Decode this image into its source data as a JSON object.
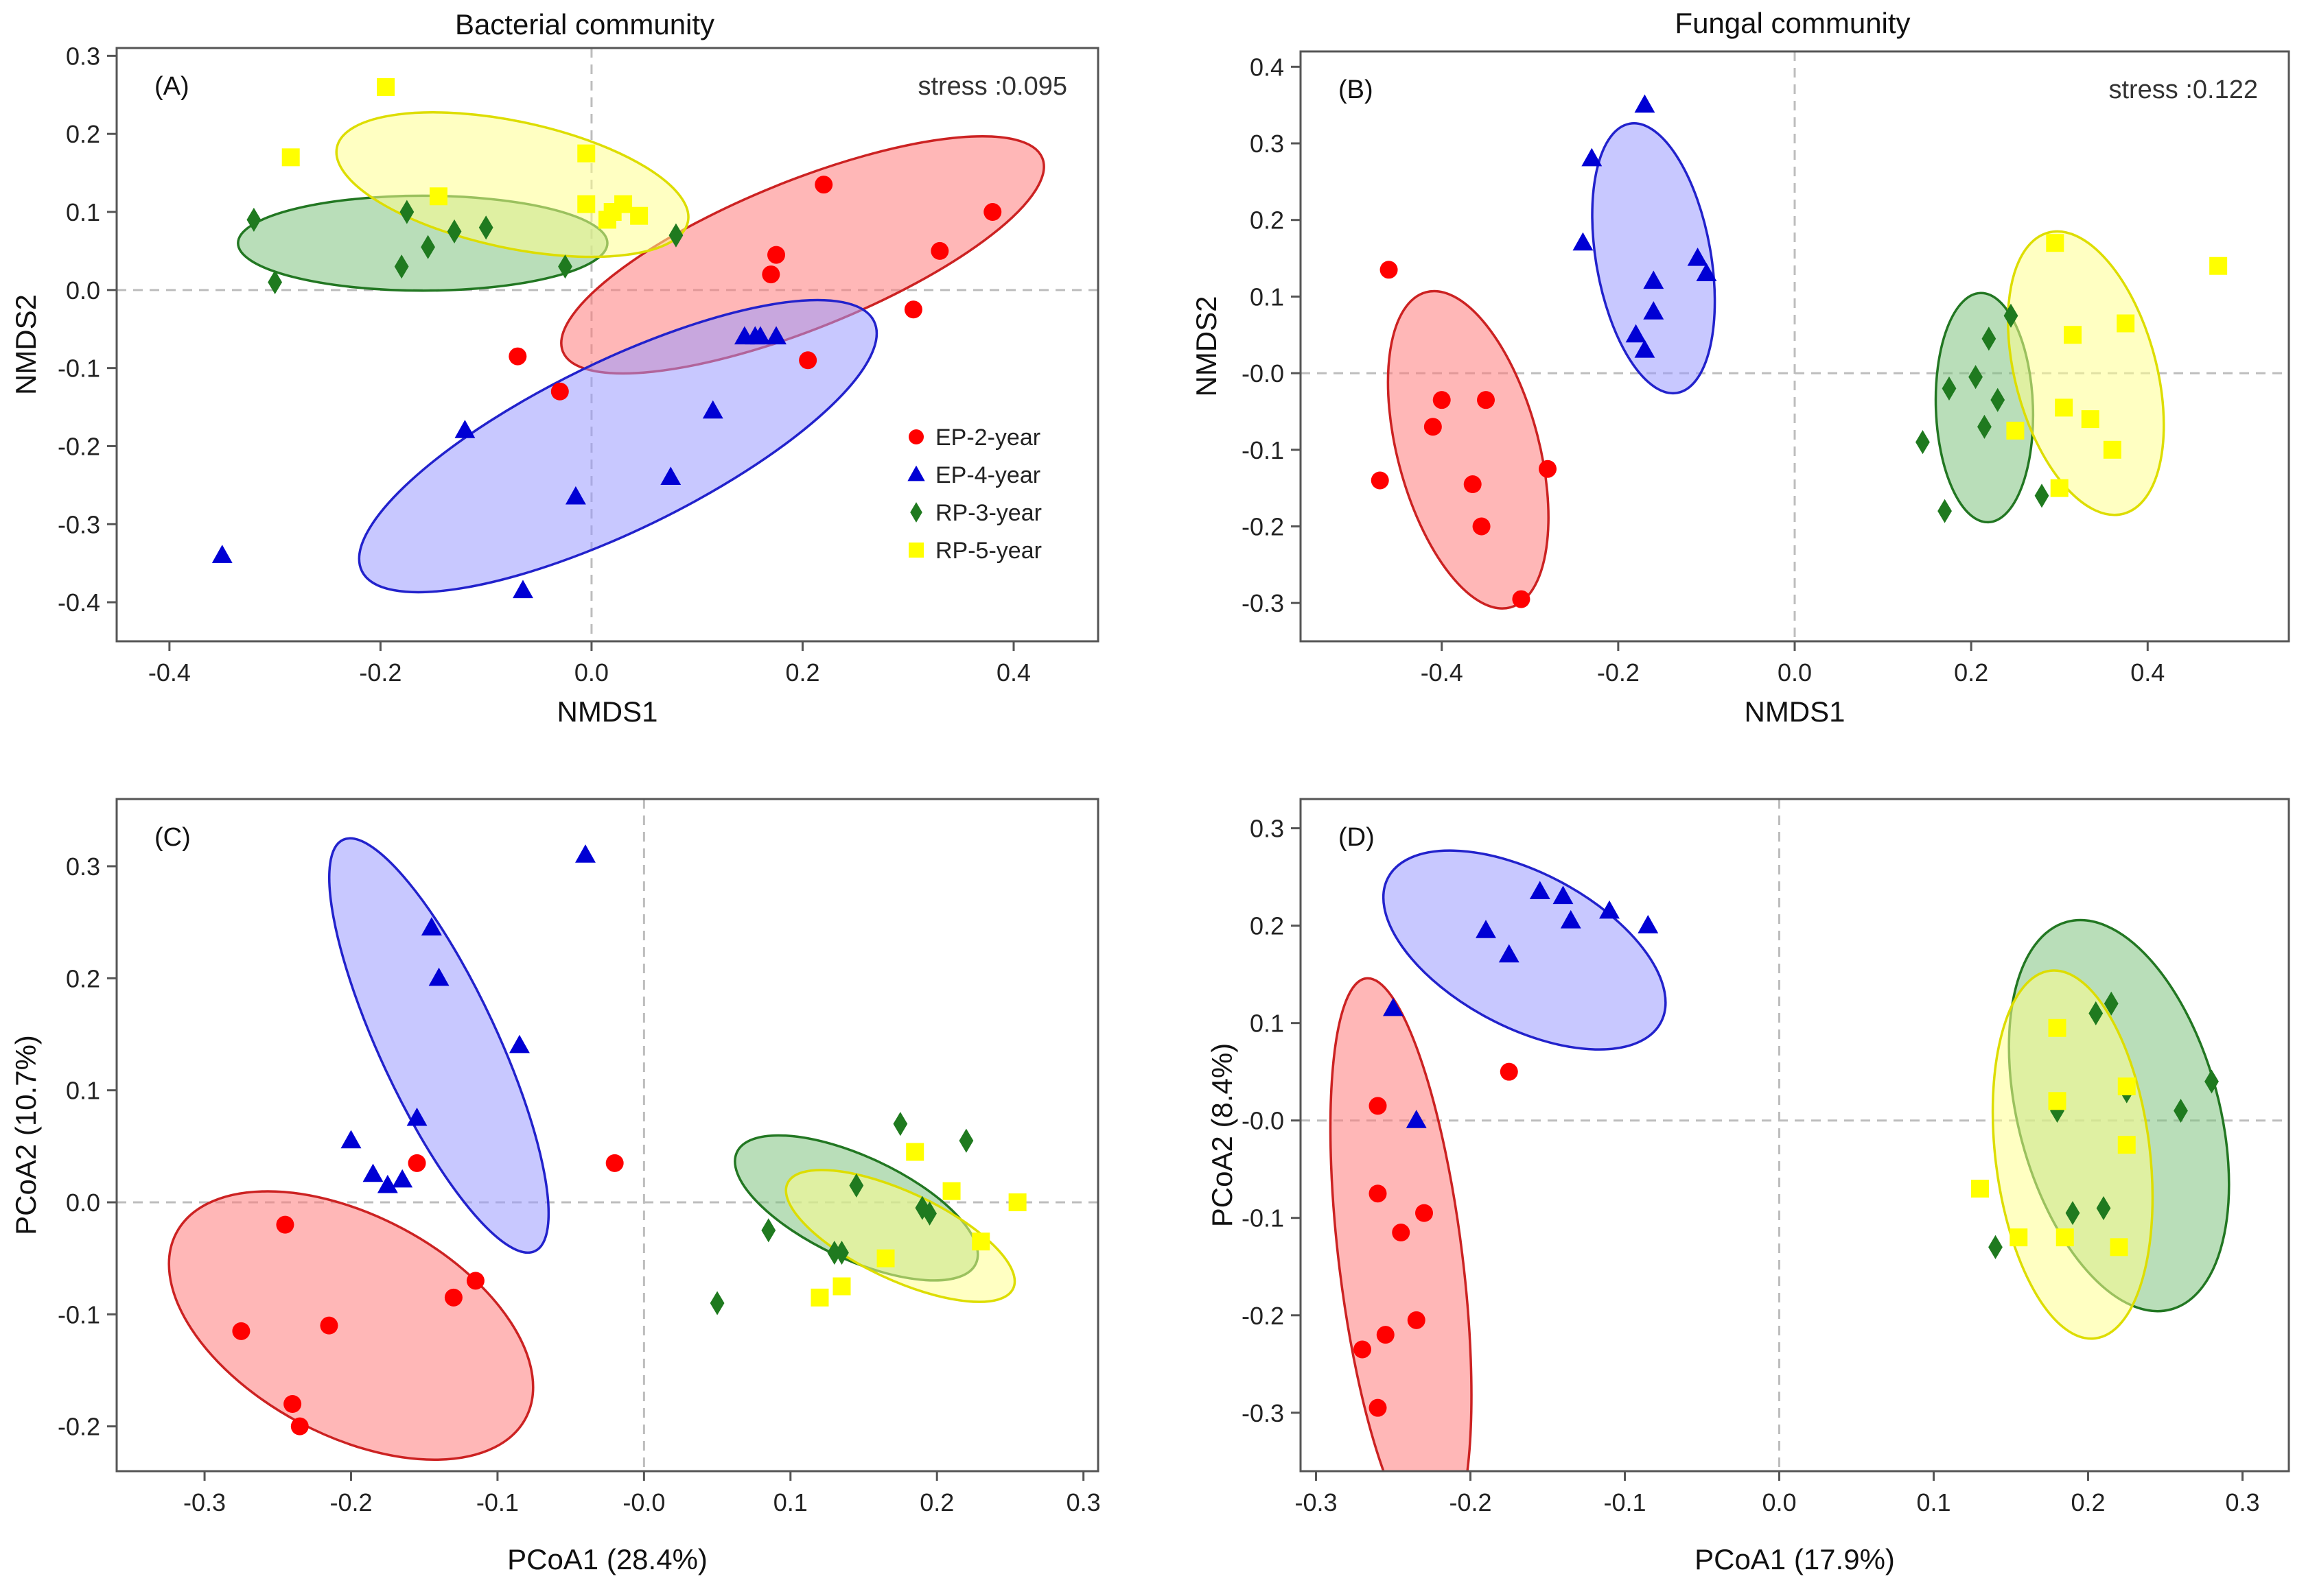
{
  "column_titles": [
    "Bacterial community",
    "Fungal community"
  ],
  "legend_colors": {
    "EP-2-year": "#ff0000",
    "EP-4-year": "#0000d4",
    "RP-3-year": "#1f7a1f",
    "RP-5-year": "#ffff00"
  },
  "ellipse_fill": {
    "EP-2-year": "#ff7b7b",
    "EP-4-year": "#9b9bff",
    "RP-3-year": "#7fc27f",
    "RP-5-year": "#ffff8f"
  },
  "ellipse_stroke": {
    "EP-2-year": "#cc2222",
    "EP-4-year": "#2222cc",
    "RP-3-year": "#227722",
    "RP-5-year": "#dddd00"
  },
  "chart_data": [
    {
      "type": "scatter",
      "panel": "(A)",
      "title": "Bacterial community",
      "xlabel": "NMDS1",
      "ylabel": "NMDS2",
      "annotation": "stress :0.095",
      "xlim": [
        -0.45,
        0.48
      ],
      "ylim": [
        -0.45,
        0.31
      ],
      "xticks": [
        -0.4,
        -0.2,
        0.0,
        0.2,
        0.4
      ],
      "xtick_labels": [
        "-0.4",
        "-0.2",
        "0.0",
        "0.2",
        "0.4"
      ],
      "yticks": [
        0.3,
        0.2,
        0.1,
        0.0,
        -0.1,
        -0.2,
        -0.3,
        -0.4
      ],
      "ytick_labels": [
        "0.3",
        "0.2",
        "0.1",
        "0.0",
        "-0.1",
        "-0.2",
        "-0.3",
        "-0.4"
      ],
      "legend": [
        "EP-2-year",
        "EP-4-year",
        "RP-3-year",
        "RP-5-year"
      ],
      "legend_position": "right-middle",
      "series": [
        {
          "name": "EP-2-year",
          "marker": "circle",
          "points": [
            [
              -0.07,
              -0.085
            ],
            [
              -0.03,
              -0.13
            ],
            [
              0.17,
              0.02
            ],
            [
              0.175,
              0.045
            ],
            [
              0.22,
              0.135
            ],
            [
              0.205,
              -0.09
            ],
            [
              0.305,
              -0.025
            ],
            [
              0.33,
              0.05
            ],
            [
              0.38,
              0.1
            ]
          ]
        },
        {
          "name": "EP-4-year",
          "marker": "triangle",
          "points": [
            [
              -0.35,
              -0.34
            ],
            [
              -0.12,
              -0.18
            ],
            [
              -0.065,
              -0.385
            ],
            [
              -0.015,
              -0.265
            ],
            [
              0.075,
              -0.24
            ],
            [
              0.115,
              -0.155
            ],
            [
              0.145,
              -0.06
            ],
            [
              0.155,
              -0.06
            ],
            [
              0.16,
              -0.06
            ],
            [
              0.175,
              -0.06
            ]
          ]
        },
        {
          "name": "RP-3-year",
          "marker": "diamond",
          "points": [
            [
              -0.32,
              0.09
            ],
            [
              -0.3,
              0.01
            ],
            [
              -0.18,
              0.03
            ],
            [
              -0.175,
              0.1
            ],
            [
              -0.155,
              0.055
            ],
            [
              -0.13,
              0.075
            ],
            [
              -0.1,
              0.08
            ],
            [
              -0.025,
              0.03
            ],
            [
              0.08,
              0.07
            ]
          ]
        },
        {
          "name": "RP-5-year",
          "marker": "square",
          "points": [
            [
              -0.285,
              0.17
            ],
            [
              -0.195,
              0.26
            ],
            [
              -0.145,
              0.12
            ],
            [
              -0.005,
              0.11
            ],
            [
              -0.005,
              0.175
            ],
            [
              0.015,
              0.09
            ],
            [
              0.02,
              0.1
            ],
            [
              0.03,
              0.11
            ],
            [
              0.045,
              0.095
            ]
          ]
        }
      ],
      "ellipses": [
        {
          "group": "EP-2-year",
          "center": [
            0.2,
            0.045
          ],
          "rx": 0.245,
          "ry": 0.07,
          "angle_deg": 22
        },
        {
          "group": "EP-4-year",
          "center": [
            0.025,
            -0.2
          ],
          "rx": 0.27,
          "ry": 0.08,
          "angle_deg": 26
        },
        {
          "group": "RP-3-year",
          "center": [
            -0.16,
            0.06
          ],
          "rx": 0.175,
          "ry": 0.045,
          "angle_deg": 0
        },
        {
          "group": "RP-5-year",
          "center": [
            -0.075,
            0.135
          ],
          "rx": 0.17,
          "ry": 0.06,
          "angle_deg": -12
        }
      ]
    },
    {
      "type": "scatter",
      "panel": "(B)",
      "title": "Fungal community",
      "xlabel": "NMDS1",
      "ylabel": "NMDS2",
      "annotation": "stress :0.122",
      "xlim": [
        -0.56,
        0.56
      ],
      "ylim": [
        -0.35,
        0.42
      ],
      "xticks": [
        -0.4,
        -0.2,
        0.0,
        0.2,
        0.4
      ],
      "xtick_labels": [
        "-0.4",
        "-0.2",
        "0.0",
        "0.2",
        "0.4"
      ],
      "yticks": [
        0.4,
        0.3,
        0.2,
        0.1,
        0.0,
        -0.1,
        -0.2,
        -0.3
      ],
      "ytick_labels": [
        "0.4",
        "0.3",
        "0.2",
        "0.1",
        "-0.0",
        "-0.1",
        "-0.2",
        "-0.3"
      ],
      "series": [
        {
          "name": "EP-2-year",
          "marker": "circle",
          "points": [
            [
              -0.46,
              0.135
            ],
            [
              -0.47,
              -0.14
            ],
            [
              -0.41,
              -0.07
            ],
            [
              -0.4,
              -0.035
            ],
            [
              -0.365,
              -0.145
            ],
            [
              -0.355,
              -0.2
            ],
            [
              -0.35,
              -0.035
            ],
            [
              -0.31,
              -0.295
            ],
            [
              -0.28,
              -0.125
            ]
          ]
        },
        {
          "name": "EP-4-year",
          "marker": "triangle",
          "points": [
            [
              -0.24,
              0.17
            ],
            [
              -0.23,
              0.28
            ],
            [
              -0.18,
              0.05
            ],
            [
              -0.17,
              0.03
            ],
            [
              -0.17,
              0.35
            ],
            [
              -0.16,
              0.08
            ],
            [
              -0.16,
              0.12
            ],
            [
              -0.11,
              0.15
            ],
            [
              -0.1,
              0.13
            ]
          ]
        },
        {
          "name": "RP-3-year",
          "marker": "diamond",
          "points": [
            [
              0.145,
              -0.09
            ],
            [
              0.17,
              -0.18
            ],
            [
              0.175,
              -0.02
            ],
            [
              0.205,
              -0.005
            ],
            [
              0.215,
              -0.07
            ],
            [
              0.22,
              0.045
            ],
            [
              0.23,
              -0.035
            ],
            [
              0.245,
              0.075
            ],
            [
              0.28,
              -0.16
            ]
          ]
        },
        {
          "name": "RP-5-year",
          "marker": "square",
          "points": [
            [
              0.25,
              -0.075
            ],
            [
              0.295,
              0.17
            ],
            [
              0.3,
              -0.15
            ],
            [
              0.305,
              -0.045
            ],
            [
              0.315,
              0.05
            ],
            [
              0.335,
              -0.06
            ],
            [
              0.36,
              -0.1
            ],
            [
              0.375,
              0.065
            ],
            [
              0.48,
              0.14
            ]
          ]
        }
      ],
      "ellipses": [
        {
          "group": "EP-2-year",
          "center": [
            -0.37,
            -0.1
          ],
          "rx": 0.185,
          "ry": 0.08,
          "angle_deg": -75
        },
        {
          "group": "EP-4-year",
          "center": [
            -0.16,
            0.15
          ],
          "rx": 0.155,
          "ry": 0.065,
          "angle_deg": -80
        },
        {
          "group": "RP-3-year",
          "center": [
            0.215,
            -0.045
          ],
          "rx": 0.13,
          "ry": 0.055,
          "angle_deg": -88
        },
        {
          "group": "RP-5-year",
          "center": [
            0.33,
            0.0
          ],
          "rx": 0.165,
          "ry": 0.08,
          "angle_deg": -75
        }
      ]
    },
    {
      "type": "scatter",
      "panel": "(C)",
      "xlabel": "PCoA1 (28.4%)",
      "ylabel": "PCoA2 (10.7%)",
      "xlim": [
        -0.36,
        0.31
      ],
      "ylim": [
        -0.24,
        0.36
      ],
      "xticks": [
        -0.3,
        -0.2,
        -0.1,
        0.0,
        0.1,
        0.2,
        0.3
      ],
      "xtick_labels": [
        "-0.3",
        "-0.2",
        "-0.1",
        "-0.0",
        "0.1",
        "0.2",
        "0.3"
      ],
      "yticks": [
        0.3,
        0.2,
        0.1,
        0.0,
        -0.1,
        -0.2
      ],
      "ytick_labels": [
        "0.3",
        "0.2",
        "0.1",
        "0.0",
        "-0.1",
        "-0.2"
      ],
      "series": [
        {
          "name": "EP-2-year",
          "marker": "circle",
          "points": [
            [
              -0.245,
              -0.02
            ],
            [
              -0.275,
              -0.115
            ],
            [
              -0.24,
              -0.18
            ],
            [
              -0.235,
              -0.2
            ],
            [
              -0.215,
              -0.11
            ],
            [
              -0.155,
              0.035
            ],
            [
              -0.13,
              -0.085
            ],
            [
              -0.115,
              -0.07
            ],
            [
              -0.02,
              0.035
            ]
          ]
        },
        {
          "name": "EP-4-year",
          "marker": "triangle",
          "points": [
            [
              -0.2,
              0.055
            ],
            [
              -0.185,
              0.025
            ],
            [
              -0.175,
              0.015
            ],
            [
              -0.165,
              0.02
            ],
            [
              -0.155,
              0.075
            ],
            [
              -0.145,
              0.245
            ],
            [
              -0.14,
              0.2
            ],
            [
              -0.085,
              0.14
            ],
            [
              -0.04,
              0.31
            ]
          ]
        },
        {
          "name": "RP-3-year",
          "marker": "diamond",
          "points": [
            [
              0.05,
              -0.09
            ],
            [
              0.085,
              -0.025
            ],
            [
              0.13,
              -0.045
            ],
            [
              0.135,
              -0.045
            ],
            [
              0.145,
              0.015
            ],
            [
              0.175,
              0.07
            ],
            [
              0.19,
              -0.005
            ],
            [
              0.195,
              -0.01
            ],
            [
              0.22,
              0.055
            ]
          ]
        },
        {
          "name": "RP-5-year",
          "marker": "square",
          "points": [
            [
              0.12,
              -0.085
            ],
            [
              0.135,
              -0.075
            ],
            [
              0.165,
              -0.05
            ],
            [
              0.185,
              0.045
            ],
            [
              0.21,
              0.01
            ],
            [
              0.23,
              -0.035
            ],
            [
              0.255,
              0.0
            ]
          ]
        }
      ],
      "ellipses": [
        {
          "group": "EP-2-year",
          "center": [
            -0.2,
            -0.11
          ],
          "rx": 0.135,
          "ry": 0.075,
          "angle_deg": -28
        },
        {
          "group": "EP-4-year",
          "center": [
            -0.14,
            0.14
          ],
          "rx": 0.155,
          "ry": 0.04,
          "angle_deg": -65
        },
        {
          "group": "RP-3-year",
          "center": [
            0.145,
            -0.005
          ],
          "rx": 0.09,
          "ry": 0.035,
          "angle_deg": -25
        },
        {
          "group": "RP-5-year",
          "center": [
            0.175,
            -0.03
          ],
          "rx": 0.085,
          "ry": 0.03,
          "angle_deg": -25
        }
      ]
    },
    {
      "type": "scatter",
      "panel": "(D)",
      "xlabel": "PCoA1 (17.9%)",
      "ylabel": "PCoA2 (8.4%)",
      "xlim": [
        -0.31,
        0.33
      ],
      "ylim": [
        -0.36,
        0.33
      ],
      "xticks": [
        -0.3,
        -0.2,
        -0.1,
        0.0,
        0.1,
        0.2,
        0.3
      ],
      "xtick_labels": [
        "-0.3",
        "-0.2",
        "-0.1",
        "0.0",
        "0.1",
        "0.2",
        "0.3"
      ],
      "yticks": [
        0.3,
        0.2,
        0.1,
        0.0,
        -0.1,
        -0.2,
        -0.3
      ],
      "ytick_labels": [
        "0.3",
        "0.2",
        "0.1",
        "-0.0",
        "-0.1",
        "-0.2",
        "-0.3"
      ],
      "series": [
        {
          "name": "EP-2-year",
          "marker": "circle",
          "points": [
            [
              -0.26,
              0.015
            ],
            [
              -0.26,
              -0.075
            ],
            [
              -0.26,
              -0.295
            ],
            [
              -0.27,
              -0.235
            ],
            [
              -0.255,
              -0.22
            ],
            [
              -0.245,
              -0.115
            ],
            [
              -0.235,
              -0.205
            ],
            [
              -0.23,
              -0.095
            ],
            [
              -0.175,
              0.05
            ]
          ]
        },
        {
          "name": "EP-4-year",
          "marker": "triangle",
          "points": [
            [
              -0.25,
              0.115
            ],
            [
              -0.235,
              -0.0
            ],
            [
              -0.19,
              0.195
            ],
            [
              -0.175,
              0.17
            ],
            [
              -0.155,
              0.235
            ],
            [
              -0.14,
              0.23
            ],
            [
              -0.135,
              0.205
            ],
            [
              -0.11,
              0.215
            ],
            [
              -0.085,
              0.2
            ]
          ]
        },
        {
          "name": "RP-3-year",
          "marker": "diamond",
          "points": [
            [
              0.14,
              -0.13
            ],
            [
              0.18,
              0.01
            ],
            [
              0.19,
              -0.095
            ],
            [
              0.205,
              0.11
            ],
            [
              0.21,
              -0.09
            ],
            [
              0.215,
              0.12
            ],
            [
              0.225,
              0.03
            ],
            [
              0.26,
              0.01
            ],
            [
              0.28,
              0.04
            ]
          ]
        },
        {
          "name": "RP-5-year",
          "marker": "square",
          "points": [
            [
              0.13,
              -0.07
            ],
            [
              0.155,
              -0.12
            ],
            [
              0.18,
              0.095
            ],
            [
              0.18,
              0.02
            ],
            [
              0.185,
              -0.12
            ],
            [
              0.22,
              -0.13
            ],
            [
              0.225,
              -0.025
            ],
            [
              0.225,
              0.035
            ]
          ]
        }
      ],
      "ellipses": [
        {
          "group": "EP-2-year",
          "center": [
            -0.245,
            -0.145
          ],
          "rx": 0.185,
          "ry": 0.04,
          "angle_deg": -83
        },
        {
          "group": "EP-4-year",
          "center": [
            -0.165,
            0.175
          ],
          "rx": 0.1,
          "ry": 0.05,
          "angle_deg": -28
        },
        {
          "group": "RP-3-year",
          "center": [
            0.22,
            0.005
          ],
          "rx": 0.13,
          "ry": 0.065,
          "angle_deg": -75
        },
        {
          "group": "RP-5-year",
          "center": [
            0.19,
            -0.035
          ],
          "rx": 0.12,
          "ry": 0.05,
          "angle_deg": -83
        }
      ]
    }
  ]
}
